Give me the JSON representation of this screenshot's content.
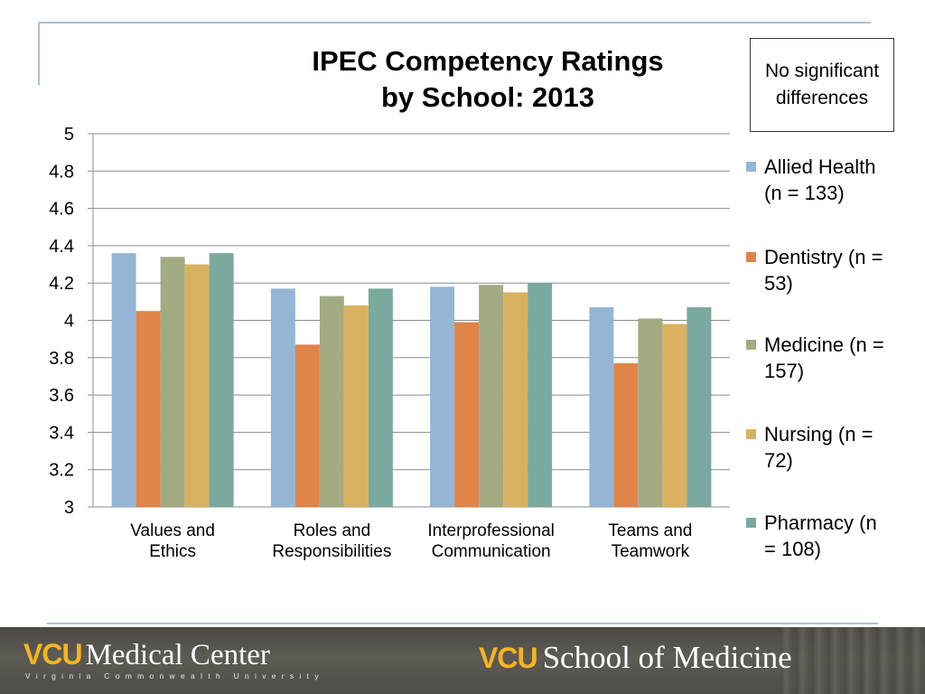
{
  "chart_data": {
    "type": "bar",
    "title_lines": [
      "IPEC Competency Ratings",
      "by School: 2013"
    ],
    "annotation": "No significant differences",
    "categories": [
      [
        "Values and",
        "Ethics"
      ],
      [
        "Roles and",
        "Responsibilities"
      ],
      [
        "Interprofessional",
        "Communication"
      ],
      [
        "Teams and",
        "Teamwork"
      ]
    ],
    "ylim": [
      3,
      5
    ],
    "yticks": [
      "5",
      "4.8",
      "4.6",
      "4.4",
      "4.2",
      "4",
      "3.8",
      "3.6",
      "3.4",
      "3.2",
      "3"
    ],
    "grid": true,
    "legend_position": "right",
    "series": [
      {
        "name": "Allied Health (n = 133)",
        "color": "#94b6d4",
        "values": [
          4.36,
          4.17,
          4.18,
          4.07
        ]
      },
      {
        "name": "Dentistry (n = 53)",
        "color": "#e0844a",
        "values": [
          4.05,
          3.87,
          3.99,
          3.77
        ]
      },
      {
        "name": "Medicine (n = 157)",
        "color": "#a3ab82",
        "values": [
          4.34,
          4.13,
          4.19,
          4.01
        ]
      },
      {
        "name": "Nursing (n = 72)",
        "color": "#d9b25f",
        "values": [
          4.3,
          4.08,
          4.15,
          3.98
        ]
      },
      {
        "name": "Pharmacy (n = 108)",
        "color": "#7aa99e",
        "values": [
          4.36,
          4.17,
          4.2,
          4.07
        ]
      }
    ]
  },
  "footer": {
    "left_logo_mark": "VCU",
    "left_logo_text": "Medical Center",
    "left_logo_subtitle": "Virginia Commonwealth University",
    "right_logo_mark": "VCU",
    "right_logo_text": "School of Medicine"
  }
}
